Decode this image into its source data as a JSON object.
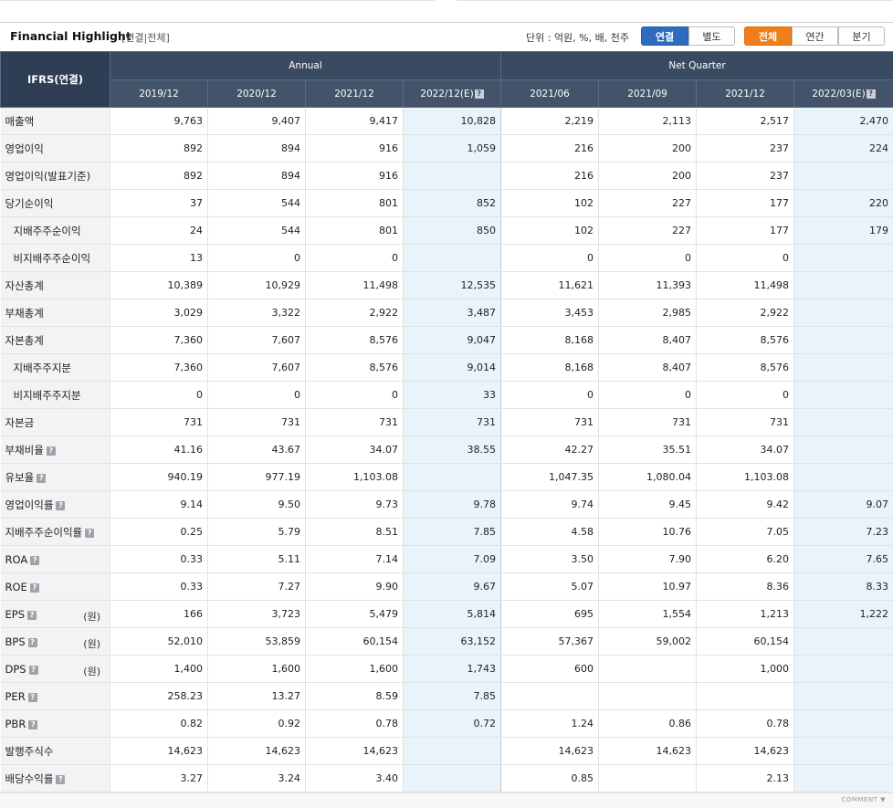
{
  "header": {
    "title": "Financial Highlight",
    "subtitle": "[연결|전체]",
    "unit": "단위 : 억원, %, 배, 천주",
    "buttons_scope": [
      "연결",
      "별도"
    ],
    "buttons_period": [
      "전체",
      "연간",
      "분기"
    ]
  },
  "table": {
    "corner": "IFRS(연결)",
    "groups": [
      "Annual",
      "Net Quarter"
    ],
    "periods": [
      "2019/12",
      "2020/12",
      "2021/12",
      "2022/12(E)",
      "2021/06",
      "2021/09",
      "2021/12",
      "2022/03(E)"
    ],
    "question_mark": "?",
    "rows": [
      {
        "label": "매출액",
        "indent": false,
        "help": false,
        "unit": "",
        "values": [
          "9,763",
          "9,407",
          "9,417",
          "10,828",
          "2,219",
          "2,113",
          "2,517",
          "2,470"
        ]
      },
      {
        "label": "영업이익",
        "indent": false,
        "help": false,
        "unit": "",
        "values": [
          "892",
          "894",
          "916",
          "1,059",
          "216",
          "200",
          "237",
          "224"
        ]
      },
      {
        "label": "영업이익(발표기준)",
        "indent": false,
        "help": false,
        "unit": "",
        "values": [
          "892",
          "894",
          "916",
          "",
          "216",
          "200",
          "237",
          ""
        ]
      },
      {
        "label": "당기순이익",
        "indent": false,
        "help": false,
        "unit": "",
        "values": [
          "37",
          "544",
          "801",
          "852",
          "102",
          "227",
          "177",
          "220"
        ]
      },
      {
        "label": "지배주주순이익",
        "indent": true,
        "help": false,
        "unit": "",
        "values": [
          "24",
          "544",
          "801",
          "850",
          "102",
          "227",
          "177",
          "179"
        ]
      },
      {
        "label": "비지배주주순이익",
        "indent": true,
        "help": false,
        "unit": "",
        "values": [
          "13",
          "0",
          "0",
          "",
          "0",
          "0",
          "0",
          ""
        ]
      },
      {
        "label": "자산총계",
        "indent": false,
        "help": false,
        "unit": "",
        "values": [
          "10,389",
          "10,929",
          "11,498",
          "12,535",
          "11,621",
          "11,393",
          "11,498",
          ""
        ]
      },
      {
        "label": "부채총계",
        "indent": false,
        "help": false,
        "unit": "",
        "values": [
          "3,029",
          "3,322",
          "2,922",
          "3,487",
          "3,453",
          "2,985",
          "2,922",
          ""
        ]
      },
      {
        "label": "자본총계",
        "indent": false,
        "help": false,
        "unit": "",
        "values": [
          "7,360",
          "7,607",
          "8,576",
          "9,047",
          "8,168",
          "8,407",
          "8,576",
          ""
        ]
      },
      {
        "label": "지배주주지분",
        "indent": true,
        "help": false,
        "unit": "",
        "values": [
          "7,360",
          "7,607",
          "8,576",
          "9,014",
          "8,168",
          "8,407",
          "8,576",
          ""
        ]
      },
      {
        "label": "비지배주주지분",
        "indent": true,
        "help": false,
        "unit": "",
        "values": [
          "0",
          "0",
          "0",
          "33",
          "0",
          "0",
          "0",
          ""
        ]
      },
      {
        "label": "자본금",
        "indent": false,
        "help": false,
        "unit": "",
        "values": [
          "731",
          "731",
          "731",
          "731",
          "731",
          "731",
          "731",
          ""
        ]
      },
      {
        "label": "부채비율",
        "indent": false,
        "help": true,
        "unit": "",
        "values": [
          "41.16",
          "43.67",
          "34.07",
          "38.55",
          "42.27",
          "35.51",
          "34.07",
          ""
        ]
      },
      {
        "label": "유보율",
        "indent": false,
        "help": true,
        "unit": "",
        "values": [
          "940.19",
          "977.19",
          "1,103.08",
          "",
          "1,047.35",
          "1,080.04",
          "1,103.08",
          ""
        ]
      },
      {
        "label": "영업이익률",
        "indent": false,
        "help": true,
        "unit": "",
        "values": [
          "9.14",
          "9.50",
          "9.73",
          "9.78",
          "9.74",
          "9.45",
          "9.42",
          "9.07"
        ]
      },
      {
        "label": "지배주주순이익률",
        "indent": false,
        "help": true,
        "unit": "",
        "values": [
          "0.25",
          "5.79",
          "8.51",
          "7.85",
          "4.58",
          "10.76",
          "7.05",
          "7.23"
        ]
      },
      {
        "label": "ROA",
        "indent": false,
        "help": true,
        "unit": "",
        "values": [
          "0.33",
          "5.11",
          "7.14",
          "7.09",
          "3.50",
          "7.90",
          "6.20",
          "7.65"
        ]
      },
      {
        "label": "ROE",
        "indent": false,
        "help": true,
        "unit": "",
        "values": [
          "0.33",
          "7.27",
          "9.90",
          "9.67",
          "5.07",
          "10.97",
          "8.36",
          "8.33"
        ]
      },
      {
        "label": "EPS",
        "indent": false,
        "help": true,
        "unit": "(원)",
        "values": [
          "166",
          "3,723",
          "5,479",
          "5,814",
          "695",
          "1,554",
          "1,213",
          "1,222"
        ]
      },
      {
        "label": "BPS",
        "indent": false,
        "help": true,
        "unit": "(원)",
        "values": [
          "52,010",
          "53,859",
          "60,154",
          "63,152",
          "57,367",
          "59,002",
          "60,154",
          ""
        ]
      },
      {
        "label": "DPS",
        "indent": false,
        "help": true,
        "unit": "(원)",
        "values": [
          "1,400",
          "1,600",
          "1,600",
          "1,743",
          "600",
          "",
          "1,000",
          ""
        ]
      },
      {
        "label": "PER",
        "indent": false,
        "help": true,
        "unit": "",
        "values": [
          "258.23",
          "13.27",
          "8.59",
          "7.85",
          "",
          "",
          "",
          ""
        ]
      },
      {
        "label": "PBR",
        "indent": false,
        "help": true,
        "unit": "",
        "values": [
          "0.82",
          "0.92",
          "0.78",
          "0.72",
          "1.24",
          "0.86",
          "0.78",
          ""
        ]
      },
      {
        "label": "발행주식수",
        "indent": false,
        "help": false,
        "unit": "",
        "values": [
          "14,623",
          "14,623",
          "14,623",
          "",
          "14,623",
          "14,623",
          "14,623",
          ""
        ]
      },
      {
        "label": "배당수익률",
        "indent": false,
        "help": true,
        "unit": "",
        "values": [
          "3.27",
          "3.24",
          "3.40",
          "",
          "0.85",
          "",
          "2.13",
          ""
        ]
      }
    ]
  },
  "footer": {
    "comment": "COMMENT ▼"
  }
}
